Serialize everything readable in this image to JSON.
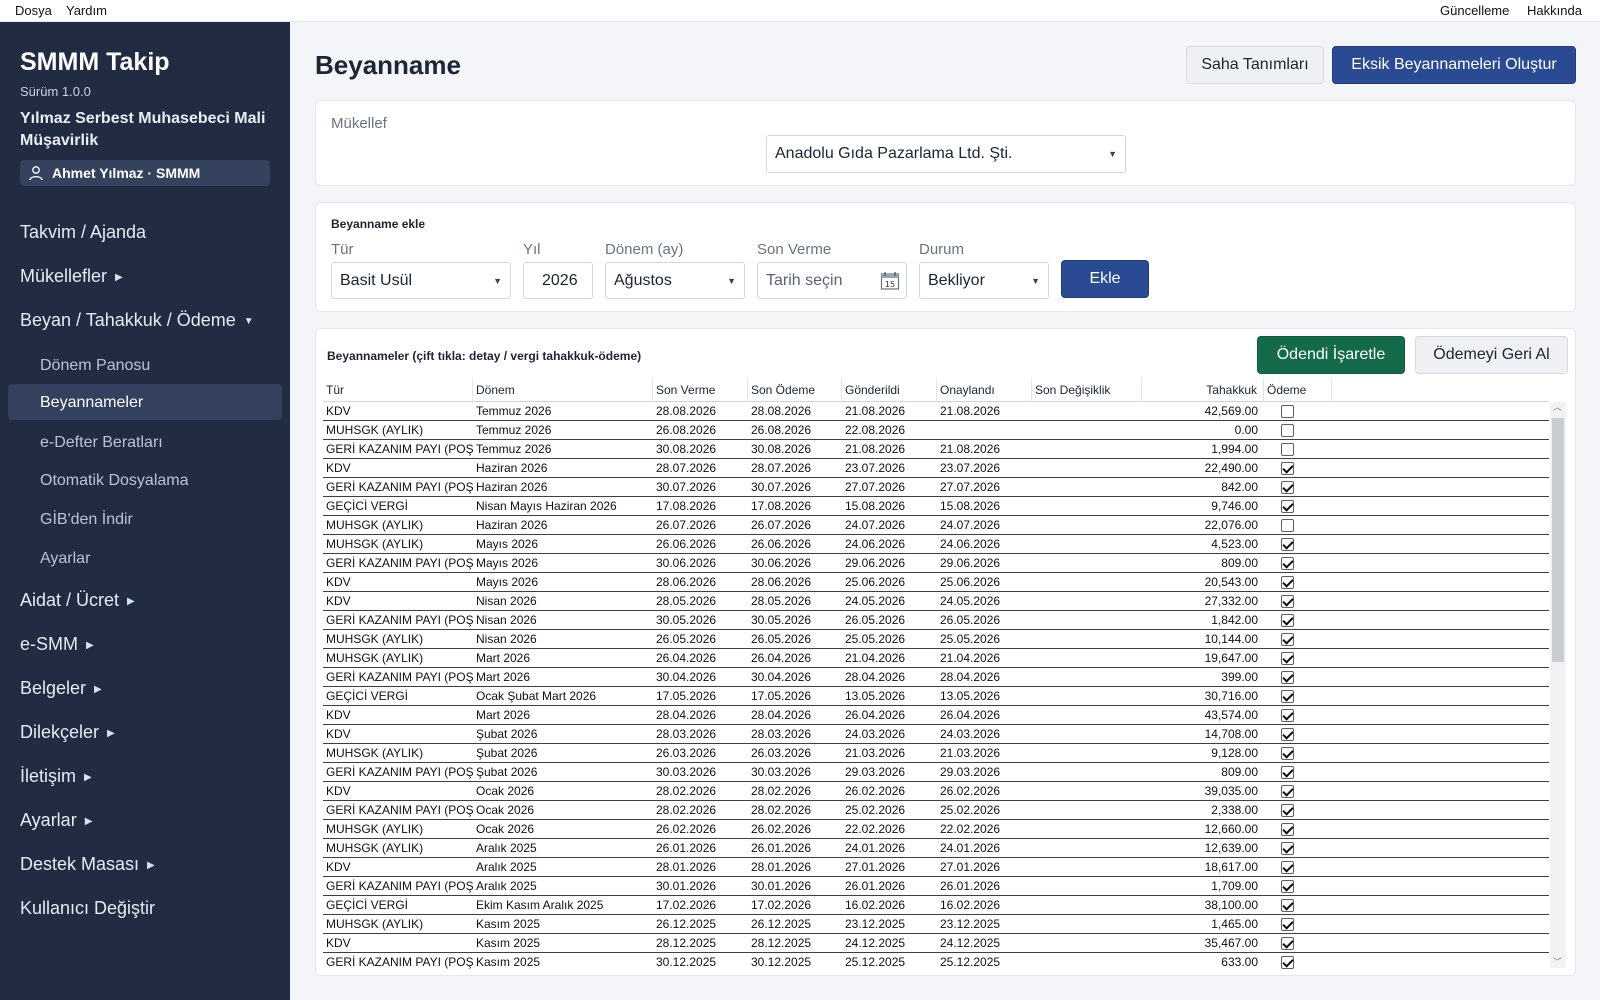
{
  "menubar": {
    "left": [
      "Dosya",
      "Yardım"
    ],
    "right": [
      "Güncelleme",
      "Hakkında"
    ]
  },
  "sidebar": {
    "app_title": "SMMM Takip",
    "version": "Sürüm 1.0.0",
    "company": "Yılmaz Serbest Muhasebeci Mali Müşavirlik",
    "user": "Ahmet Yılmaz · SMMM",
    "items": [
      {
        "label": "Takvim / Ajanda",
        "has_arrow": false
      },
      {
        "label": "Mükellefler",
        "has_arrow": true
      },
      {
        "label": "Beyan / Tahakkuk / Ödeme",
        "has_arrow": true,
        "expanded": true
      },
      {
        "label": "Aidat / Ücret",
        "has_arrow": true
      },
      {
        "label": "e-SMM",
        "has_arrow": true
      },
      {
        "label": "Belgeler",
        "has_arrow": true
      },
      {
        "label": "Dilekçeler",
        "has_arrow": true
      },
      {
        "label": "İletişim",
        "has_arrow": true
      },
      {
        "label": "Ayarlar",
        "has_arrow": true
      },
      {
        "label": "Destek Masası",
        "has_arrow": true
      },
      {
        "label": "Kullanıcı Değiştir",
        "has_arrow": false
      }
    ],
    "subitems": [
      "Dönem Panosu",
      "Beyannameler",
      "e-Defter Beratları",
      "Otomatik Dosyalama",
      "GİB'den İndir",
      "Ayarlar"
    ],
    "active_subitem": "Beyannameler"
  },
  "header": {
    "title": "Beyanname",
    "btn_fields": "Saha Tanımları",
    "btn_generate": "Eksik Beyannameleri Oluştur"
  },
  "taxpayer": {
    "label": "Mükellef",
    "value": "Anadolu Gıda Pazarlama Ltd. Şti."
  },
  "add_form": {
    "title": "Beyanname ekle",
    "type_label": "Tür",
    "type_value": "Basit Usül",
    "year_label": "Yıl",
    "year_value": "2026",
    "period_label": "Dönem (ay)",
    "period_value": "Ağustos",
    "due_label": "Son Verme",
    "due_placeholder": "Tarih seçin",
    "status_label": "Durum",
    "status_value": "Bekliyor",
    "add_button": "Ekle"
  },
  "list": {
    "title": "Beyannameler (çift tıkla: detay / vergi tahakkuk-ödeme)",
    "btn_paid": "Ödendi İşaretle",
    "btn_undo": "Ödemeyi Geri Al",
    "columns": [
      "Tür",
      "Dönem",
      "Son Verme",
      "Son Ödeme",
      "Gönderildi",
      "Onaylandı",
      "Son Değişiklik",
      "Tahakkuk",
      "Ödeme"
    ],
    "rows": [
      [
        "KDV",
        "Temmuz 2026",
        "28.08.2026",
        "28.08.2026",
        "21.08.2026",
        "21.08.2026",
        "",
        "42,569.00",
        false
      ],
      [
        "MUHSGK (AYLIK)",
        "Temmuz 2026",
        "26.08.2026",
        "26.08.2026",
        "22.08.2026",
        "",
        "",
        "0.00",
        false
      ],
      [
        "GERİ KAZANIM PAYI (POŞET)",
        "Temmuz 2026",
        "30.08.2026",
        "30.08.2026",
        "21.08.2026",
        "21.08.2026",
        "",
        "1,994.00",
        false
      ],
      [
        "KDV",
        "Haziran 2026",
        "28.07.2026",
        "28.07.2026",
        "23.07.2026",
        "23.07.2026",
        "",
        "22,490.00",
        true
      ],
      [
        "GERİ KAZANIM PAYI (POŞET)",
        "Haziran 2026",
        "30.07.2026",
        "30.07.2026",
        "27.07.2026",
        "27.07.2026",
        "",
        "842.00",
        true
      ],
      [
        "GEÇİCİ VERGİ",
        "Nisan Mayıs Haziran 2026",
        "17.08.2026",
        "17.08.2026",
        "15.08.2026",
        "15.08.2026",
        "",
        "9,746.00",
        true
      ],
      [
        "MUHSGK (AYLIK)",
        "Haziran 2026",
        "26.07.2026",
        "26.07.2026",
        "24.07.2026",
        "24.07.2026",
        "",
        "22,076.00",
        false
      ],
      [
        "MUHSGK (AYLIK)",
        "Mayıs 2026",
        "26.06.2026",
        "26.06.2026",
        "24.06.2026",
        "24.06.2026",
        "",
        "4,523.00",
        true
      ],
      [
        "GERİ KAZANIM PAYI (POŞET)",
        "Mayıs 2026",
        "30.06.2026",
        "30.06.2026",
        "29.06.2026",
        "29.06.2026",
        "",
        "809.00",
        true
      ],
      [
        "KDV",
        "Mayıs 2026",
        "28.06.2026",
        "28.06.2026",
        "25.06.2026",
        "25.06.2026",
        "",
        "20,543.00",
        true
      ],
      [
        "KDV",
        "Nisan 2026",
        "28.05.2026",
        "28.05.2026",
        "24.05.2026",
        "24.05.2026",
        "",
        "27,332.00",
        true
      ],
      [
        "GERİ KAZANIM PAYI (POŞET)",
        "Nisan 2026",
        "30.05.2026",
        "30.05.2026",
        "26.05.2026",
        "26.05.2026",
        "",
        "1,842.00",
        true
      ],
      [
        "MUHSGK (AYLIK)",
        "Nisan 2026",
        "26.05.2026",
        "26.05.2026",
        "25.05.2026",
        "25.05.2026",
        "",
        "10,144.00",
        true
      ],
      [
        "MUHSGK (AYLIK)",
        "Mart 2026",
        "26.04.2026",
        "26.04.2026",
        "21.04.2026",
        "21.04.2026",
        "",
        "19,647.00",
        true
      ],
      [
        "GERİ KAZANIM PAYI (POŞET)",
        "Mart 2026",
        "30.04.2026",
        "30.04.2026",
        "28.04.2026",
        "28.04.2026",
        "",
        "399.00",
        true
      ],
      [
        "GEÇİCİ VERGİ",
        "Ocak Şubat Mart 2026",
        "17.05.2026",
        "17.05.2026",
        "13.05.2026",
        "13.05.2026",
        "",
        "30,716.00",
        true
      ],
      [
        "KDV",
        "Mart 2026",
        "28.04.2026",
        "28.04.2026",
        "26.04.2026",
        "26.04.2026",
        "",
        "43,574.00",
        true
      ],
      [
        "KDV",
        "Şubat 2026",
        "28.03.2026",
        "28.03.2026",
        "24.03.2026",
        "24.03.2026",
        "",
        "14,708.00",
        true
      ],
      [
        "MUHSGK (AYLIK)",
        "Şubat 2026",
        "26.03.2026",
        "26.03.2026",
        "21.03.2026",
        "21.03.2026",
        "",
        "9,128.00",
        true
      ],
      [
        "GERİ KAZANIM PAYI (POŞET)",
        "Şubat 2026",
        "30.03.2026",
        "30.03.2026",
        "29.03.2026",
        "29.03.2026",
        "",
        "809.00",
        true
      ],
      [
        "KDV",
        "Ocak 2026",
        "28.02.2026",
        "28.02.2026",
        "26.02.2026",
        "26.02.2026",
        "",
        "39,035.00",
        true
      ],
      [
        "GERİ KAZANIM PAYI (POŞET)",
        "Ocak 2026",
        "28.02.2026",
        "28.02.2026",
        "25.02.2026",
        "25.02.2026",
        "",
        "2,338.00",
        true
      ],
      [
        "MUHSGK (AYLIK)",
        "Ocak 2026",
        "26.02.2026",
        "26.02.2026",
        "22.02.2026",
        "22.02.2026",
        "",
        "12,660.00",
        true
      ],
      [
        "MUHSGK (AYLIK)",
        "Aralık 2025",
        "26.01.2026",
        "26.01.2026",
        "24.01.2026",
        "24.01.2026",
        "",
        "12,639.00",
        true
      ],
      [
        "KDV",
        "Aralık 2025",
        "28.01.2026",
        "28.01.2026",
        "27.01.2026",
        "27.01.2026",
        "",
        "18,617.00",
        true
      ],
      [
        "GERİ KAZANIM PAYI (POŞET)",
        "Aralık 2025",
        "30.01.2026",
        "30.01.2026",
        "26.01.2026",
        "26.01.2026",
        "",
        "1,709.00",
        true
      ],
      [
        "GEÇİCİ VERGİ",
        "Ekim Kasım Aralık 2025",
        "17.02.2026",
        "17.02.2026",
        "16.02.2026",
        "16.02.2026",
        "",
        "38,100.00",
        true
      ],
      [
        "MUHSGK (AYLIK)",
        "Kasım 2025",
        "26.12.2025",
        "26.12.2025",
        "23.12.2025",
        "23.12.2025",
        "",
        "1,465.00",
        true
      ],
      [
        "KDV",
        "Kasım 2025",
        "28.12.2025",
        "28.12.2025",
        "24.12.2025",
        "24.12.2025",
        "",
        "35,467.00",
        true
      ],
      [
        "GERİ KAZANIM PAYI (POŞET)",
        "Kasım 2025",
        "30.12.2025",
        "30.12.2025",
        "25.12.2025",
        "25.12.2025",
        "",
        "633.00",
        true
      ]
    ]
  },
  "icons": {
    "user": "user-icon",
    "calendar": "calendar-icon",
    "dropdown": "chevron-down-icon"
  },
  "colors": {
    "sidebar": "#212c43",
    "primary": "#2a4a94",
    "success": "#146b49"
  }
}
